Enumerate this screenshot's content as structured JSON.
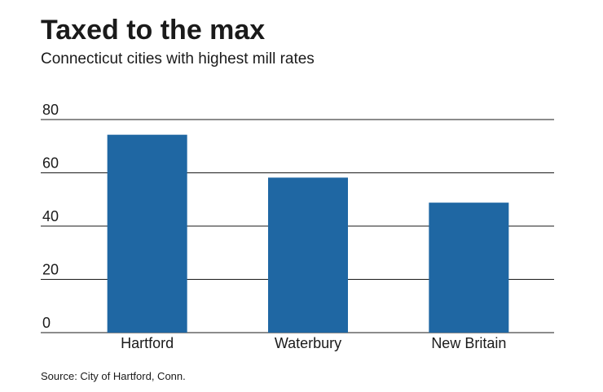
{
  "chart_data": {
    "type": "bar",
    "title": "Taxed to the max",
    "subtitle": "Connecticut cities with highest mill rates",
    "categories": [
      "Hartford",
      "Waterbury",
      "New Britain"
    ],
    "values": [
      74.3,
      58.2,
      48.8
    ],
    "ylim": [
      0,
      80
    ],
    "yticks": [
      0,
      20,
      40,
      60,
      80
    ],
    "xlabel": "",
    "ylabel": "",
    "grid": true,
    "legend": "none",
    "source": "Source: City of Hartford, Conn.",
    "bar_color": "#1f67a3",
    "grid_color": "#1a1a1a",
    "text_color": "#1a1a1a"
  }
}
